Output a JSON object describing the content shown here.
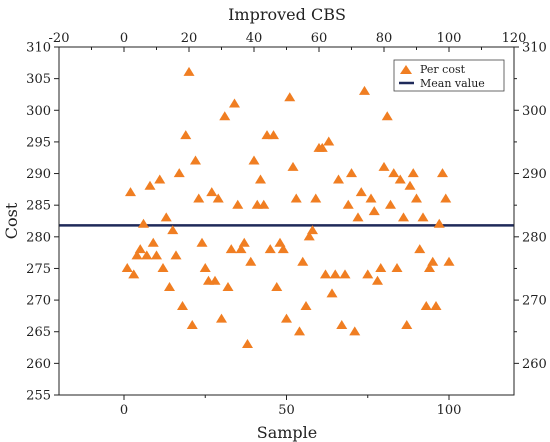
{
  "chart_data": {
    "type": "scatter",
    "title": "Improved CBS",
    "xlabel": "Sample",
    "ylabel": "Cost",
    "xlim": [
      -20,
      120
    ],
    "ylim": [
      255,
      310
    ],
    "bottom_x_ticks": [
      "0",
      "50",
      "100"
    ],
    "top_x_ticks": [
      "-20",
      "0",
      "20",
      "40",
      "60",
      "80",
      "100",
      "120"
    ],
    "left_y_ticks": [
      "255",
      "260",
      "265",
      "270",
      "275",
      "280",
      "285",
      "290",
      "295",
      "300",
      "305",
      "310"
    ],
    "right_y_ticks": [
      "260",
      "270",
      "280",
      "290",
      "300",
      "310"
    ],
    "legend": {
      "placement": "top-right",
      "per_cost": "Per cost",
      "mean_value": "Mean value"
    },
    "colors": {
      "points": "#f07e22",
      "mean_line": "#1f2a5a"
    },
    "mean_value": 281.8,
    "series": [
      {
        "name": "Per cost",
        "points": [
          [
            1,
            275
          ],
          [
            2,
            287
          ],
          [
            3,
            274
          ],
          [
            4,
            277
          ],
          [
            5,
            278
          ],
          [
            6,
            282
          ],
          [
            7,
            277
          ],
          [
            8,
            288
          ],
          [
            9,
            279
          ],
          [
            10,
            277
          ],
          [
            11,
            289
          ],
          [
            12,
            275
          ],
          [
            13,
            283
          ],
          [
            14,
            272
          ],
          [
            15,
            281
          ],
          [
            16,
            277
          ],
          [
            17,
            290
          ],
          [
            18,
            269
          ],
          [
            19,
            296
          ],
          [
            20,
            306
          ],
          [
            21,
            266
          ],
          [
            22,
            292
          ],
          [
            23,
            286
          ],
          [
            24,
            279
          ],
          [
            25,
            275
          ],
          [
            26,
            273
          ],
          [
            27,
            287
          ],
          [
            28,
            273
          ],
          [
            29,
            286
          ],
          [
            30,
            267
          ],
          [
            31,
            299
          ],
          [
            32,
            272
          ],
          [
            33,
            278
          ],
          [
            34,
            301
          ],
          [
            35,
            285
          ],
          [
            36,
            278
          ],
          [
            37,
            279
          ],
          [
            38,
            263
          ],
          [
            39,
            276
          ],
          [
            40,
            292
          ],
          [
            41,
            285
          ],
          [
            42,
            289
          ],
          [
            43,
            285
          ],
          [
            44,
            296
          ],
          [
            45,
            278
          ],
          [
            46,
            296
          ],
          [
            47,
            272
          ],
          [
            48,
            279
          ],
          [
            49,
            278
          ],
          [
            50,
            267
          ],
          [
            51,
            302
          ],
          [
            52,
            291
          ],
          [
            53,
            286
          ],
          [
            54,
            265
          ],
          [
            55,
            276
          ],
          [
            56,
            269
          ],
          [
            57,
            280
          ],
          [
            58,
            281
          ],
          [
            59,
            286
          ],
          [
            60,
            294
          ],
          [
            61,
            294
          ],
          [
            62,
            274
          ],
          [
            63,
            295
          ],
          [
            64,
            271
          ],
          [
            65,
            274
          ],
          [
            66,
            289
          ],
          [
            67,
            266
          ],
          [
            68,
            274
          ],
          [
            69,
            285
          ],
          [
            70,
            290
          ],
          [
            71,
            265
          ],
          [
            72,
            283
          ],
          [
            73,
            287
          ],
          [
            74,
            303
          ],
          [
            75,
            274
          ],
          [
            76,
            286
          ],
          [
            77,
            284
          ],
          [
            78,
            273
          ],
          [
            79,
            275
          ],
          [
            80,
            291
          ],
          [
            81,
            299
          ],
          [
            82,
            285
          ],
          [
            83,
            290
          ],
          [
            84,
            275
          ],
          [
            85,
            289
          ],
          [
            86,
            283
          ],
          [
            87,
            266
          ],
          [
            88,
            288
          ],
          [
            89,
            290
          ],
          [
            90,
            286
          ],
          [
            91,
            278
          ],
          [
            92,
            283
          ],
          [
            93,
            269
          ],
          [
            94,
            275
          ],
          [
            95,
            276
          ],
          [
            96,
            269
          ],
          [
            97,
            282
          ],
          [
            98,
            290
          ],
          [
            99,
            286
          ],
          [
            100,
            276
          ]
        ]
      }
    ]
  }
}
